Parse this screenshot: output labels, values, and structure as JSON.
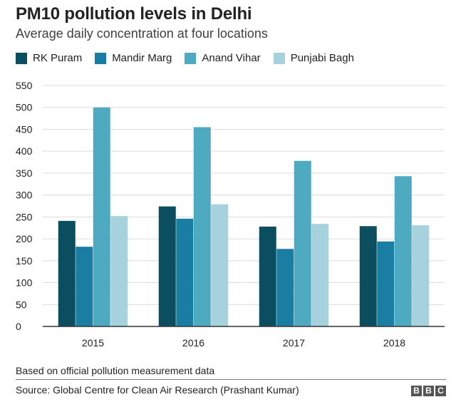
{
  "title": "PM10 pollution levels in Delhi",
  "subtitle": "Average daily concentration at four locations",
  "footnote": "Based on official pollution measurement data",
  "source": "Source: Global Centre for Clean Air Research (Prashant Kumar)",
  "logo": "BBC",
  "chart_data": {
    "type": "bar",
    "title": "PM10 pollution levels in Delhi",
    "subtitle": "Average daily concentration at four locations",
    "categories": [
      "2015",
      "2016",
      "2017",
      "2018"
    ],
    "series": [
      {
        "name": "RK Puram",
        "color": "#0b4e5f",
        "values": [
          241,
          274,
          228,
          229
        ]
      },
      {
        "name": "Mandir Marg",
        "color": "#1a7ea3",
        "values": [
          182,
          246,
          177,
          194
        ]
      },
      {
        "name": "Anand Vihar",
        "color": "#4eaac1",
        "values": [
          500,
          455,
          378,
          343
        ]
      },
      {
        "name": "Punjabi Bagh",
        "color": "#a6d2de",
        "values": [
          252,
          279,
          234,
          231
        ]
      }
    ],
    "ylim": [
      0,
      550
    ],
    "yticks": [
      0,
      50,
      100,
      150,
      200,
      250,
      300,
      350,
      400,
      450,
      500,
      550
    ],
    "grid": true,
    "legend": "top-left",
    "xlabel": "",
    "ylabel": ""
  }
}
